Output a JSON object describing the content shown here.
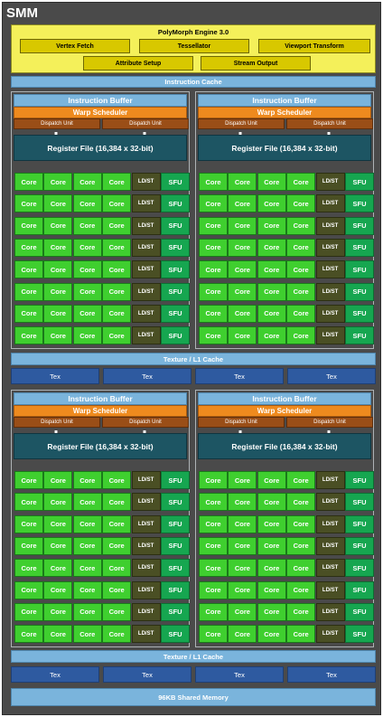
{
  "smm_title": "SMM",
  "polymorph": {
    "title": "PolyMorph Engine 3.0",
    "row1": [
      "Vertex Fetch",
      "Tessellator",
      "Viewport Transform"
    ],
    "row2": [
      "Attribute Setup",
      "Stream Output"
    ]
  },
  "instruction_cache": "Instruction Cache",
  "quadrant": {
    "instruction_buffer": "Instruction Buffer",
    "warp_scheduler": "Warp Scheduler",
    "dispatch_units": [
      "Dispatch Unit",
      "Dispatch Unit"
    ],
    "register_file": "Register File (16,384 x 32-bit)",
    "rows": 8,
    "row_units": [
      "Core",
      "Core",
      "Core",
      "Core",
      "LD/ST",
      "SFU"
    ]
  },
  "texture_cache": "Texture / L1 Cache",
  "tex_units": [
    "Tex",
    "Tex",
    "Tex",
    "Tex"
  ],
  "shared_memory": "96KB Shared Memory",
  "colors": {
    "core": "#3fcf2f",
    "ldst": "#4a4f24",
    "sfu": "#16a650",
    "warp_scheduler": "#ee8a1e",
    "dispatch_unit": "#9a4e17",
    "register_file": "#1d5563",
    "cache": "#7ab4dc",
    "tex": "#2e5aa0",
    "polymorph": "#f4f05a"
  }
}
